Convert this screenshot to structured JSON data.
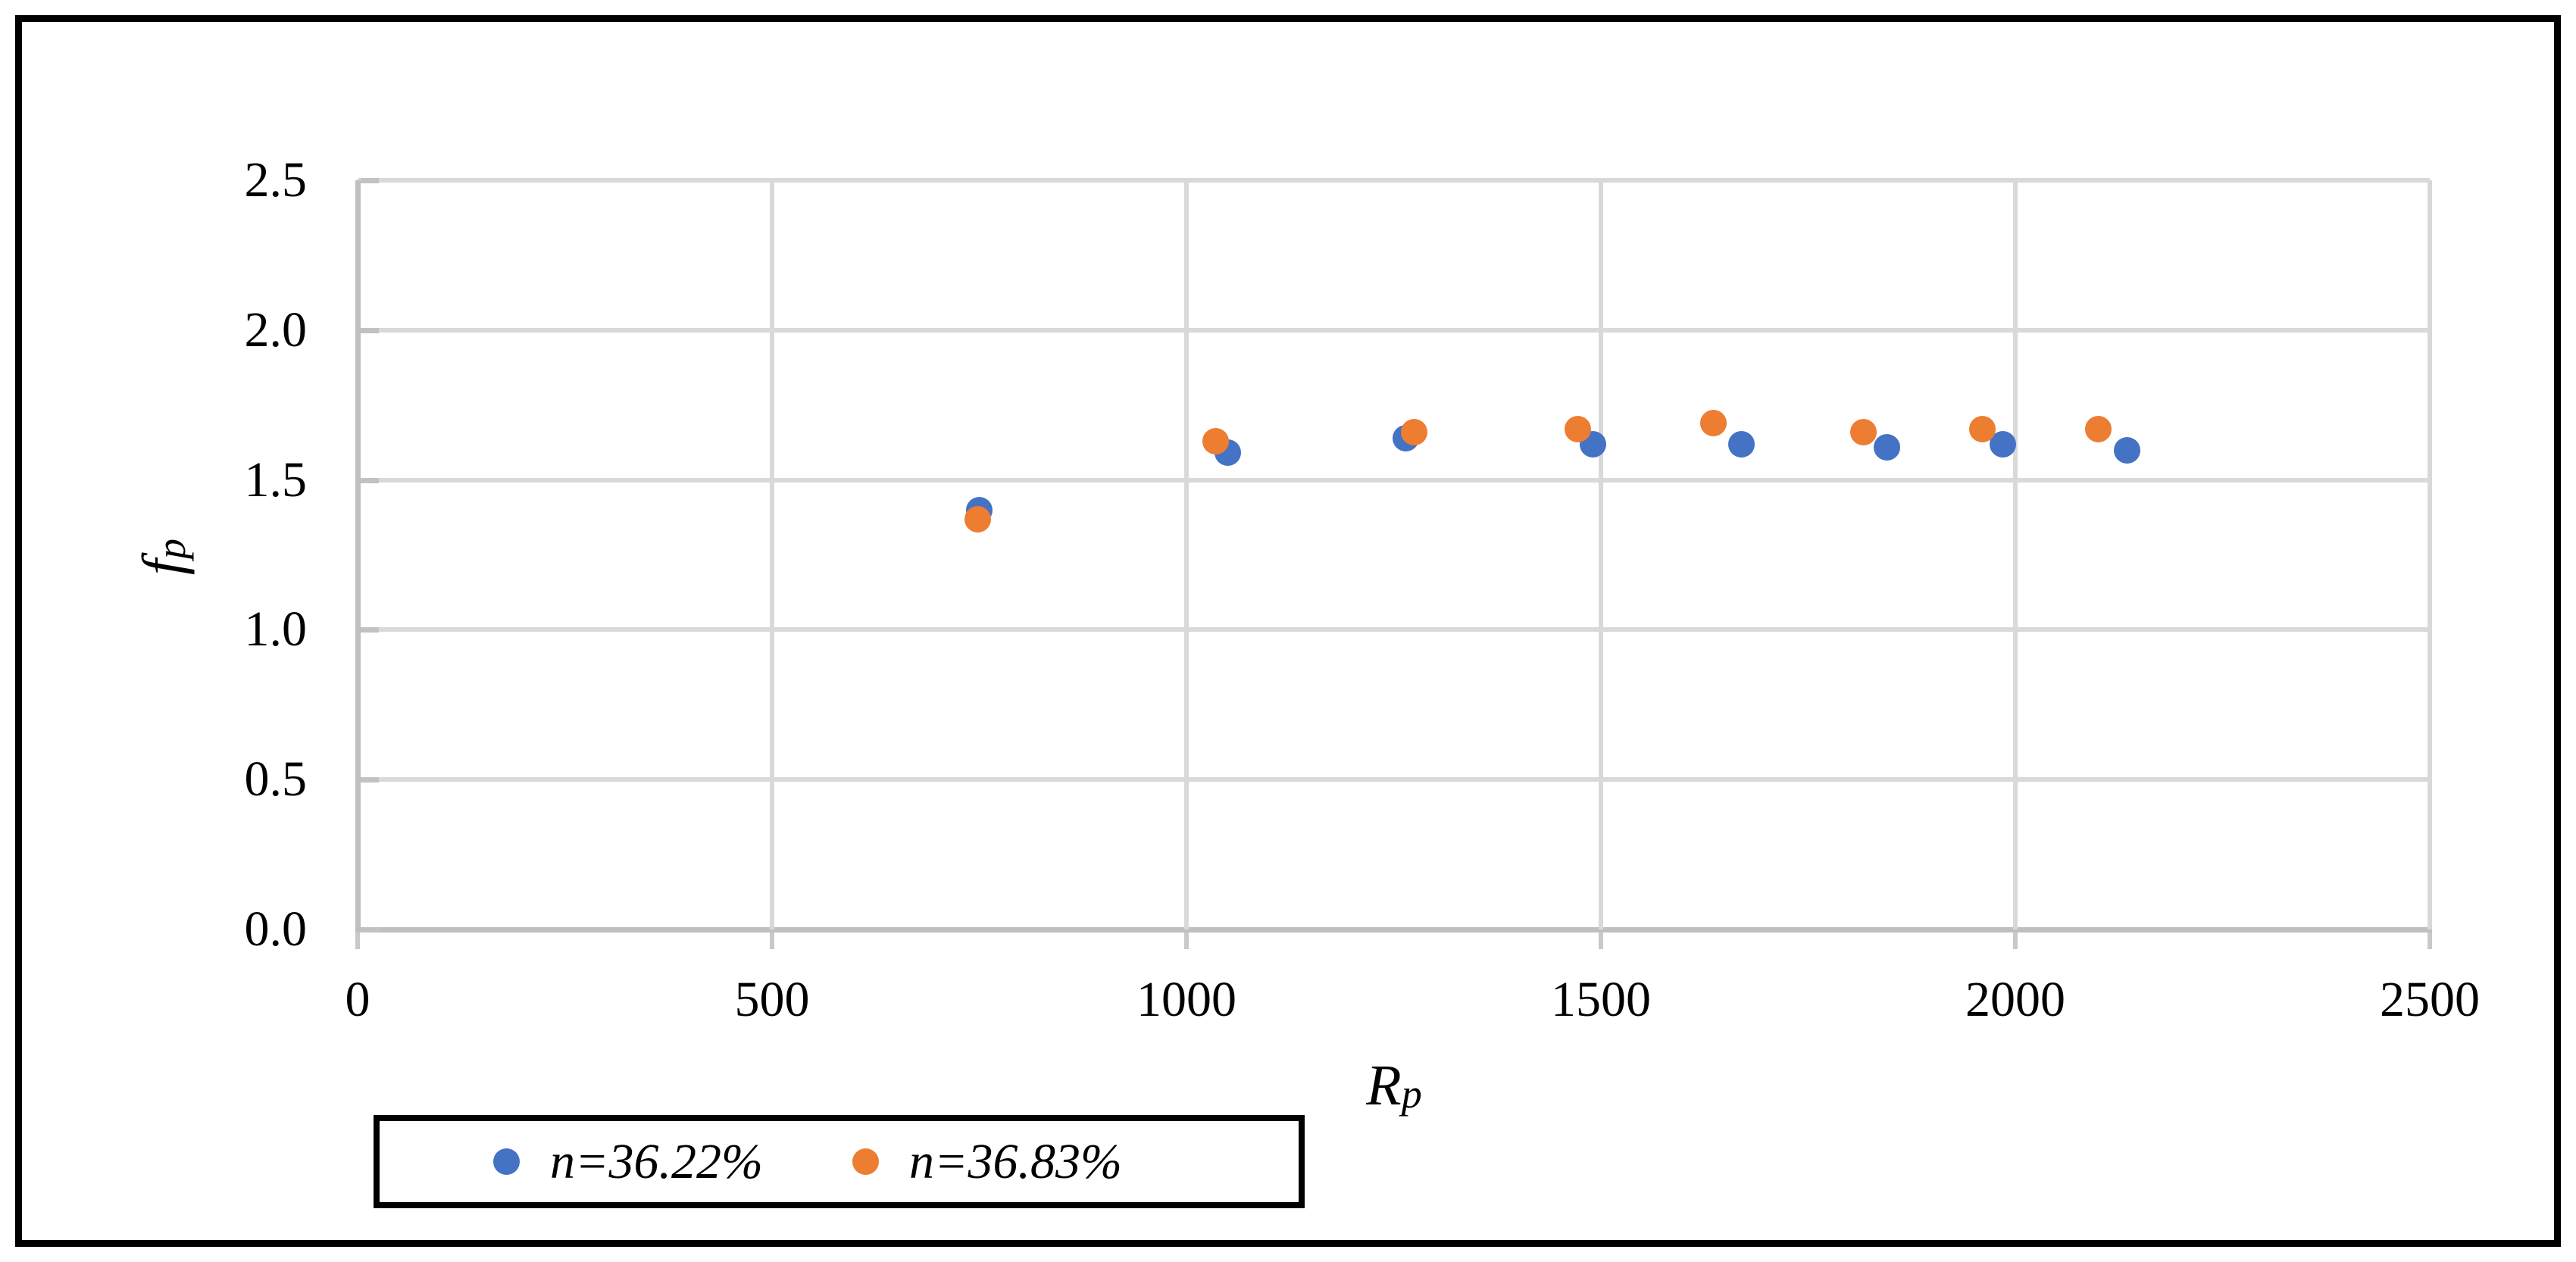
{
  "figure": {
    "background": "#ffffff",
    "border_color": "#000000"
  },
  "colors": {
    "gridline": "#d9d9d9",
    "axis_line": "#bfbfbf",
    "tick_mark": "#c2c2c2",
    "series_blue": "#4472C4",
    "series_orange": "#ED7D31",
    "text": "#000000"
  },
  "chart_data": {
    "type": "scatter",
    "title": "",
    "xlabel": "Rp",
    "xlabel_main": "R",
    "xlabel_sub": "p",
    "ylabel": "fp",
    "ylabel_main": "f",
    "ylabel_sub": "p",
    "xlim": [
      0,
      2500
    ],
    "ylim": [
      0,
      2.5
    ],
    "x_ticks": [
      "0",
      "500",
      "1000",
      "1500",
      "2000",
      "2500"
    ],
    "x_tick_values": [
      0,
      500,
      1000,
      1500,
      2000,
      2500
    ],
    "y_ticks": [
      "0.0",
      "0.5",
      "1.0",
      "1.5",
      "2.0",
      "2.5"
    ],
    "y_tick_values": [
      0,
      0.5,
      1,
      1.5,
      2,
      2.5
    ],
    "grid": true,
    "legend_position": "bottom-left",
    "series": [
      {
        "name": "n=36.22%",
        "color": "#4472C4",
        "points": [
          [
            750,
            1.4
          ],
          [
            1050,
            1.59
          ],
          [
            1265,
            1.64
          ],
          [
            1490,
            1.62
          ],
          [
            1670,
            1.62
          ],
          [
            1845,
            1.61
          ],
          [
            1985,
            1.62
          ],
          [
            2135,
            1.6
          ]
        ]
      },
      {
        "name": "n=36.83%",
        "color": "#ED7D31",
        "points": [
          [
            748,
            1.37
          ],
          [
            1035,
            1.63
          ],
          [
            1275,
            1.66
          ],
          [
            1472,
            1.67
          ],
          [
            1636,
            1.69
          ],
          [
            1817,
            1.66
          ],
          [
            1960,
            1.67
          ],
          [
            2100,
            1.67
          ]
        ]
      }
    ]
  }
}
